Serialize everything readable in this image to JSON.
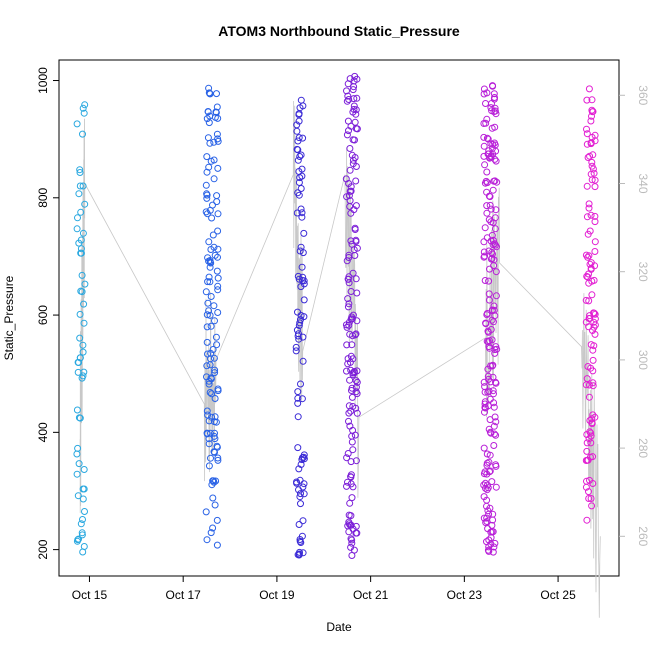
{
  "chart_data": {
    "type": "scatter",
    "title": "ATOM3 Northbound Static_Pressure",
    "xlabel": "Date",
    "ylabel": "Static_Pressure",
    "x_ticks": [
      "Oct 15",
      "Oct 17",
      "Oct 19",
      "Oct 21",
      "Oct 23",
      "Oct 25"
    ],
    "x_tick_days": [
      15,
      17,
      19,
      21,
      23,
      25
    ],
    "xlim": [
      14.35,
      26.3
    ],
    "y_ticks": [
      200,
      400,
      600,
      800,
      1000
    ],
    "ylim": [
      155,
      1035
    ],
    "y2_ticks": [
      260,
      280,
      300,
      320,
      340,
      360
    ],
    "y2lim": [
      251,
      368
    ],
    "grid": false,
    "legend": "none",
    "point_style": "open-circle",
    "line_color": "#c8c8c8",
    "clusters": [
      {
        "x_center": 14.82,
        "x_spread": 0.09,
        "n": 60,
        "color": "#29a8e0",
        "y_min": 178,
        "y_max": 965
      },
      {
        "x_center": 17.62,
        "x_spread": 0.13,
        "n": 130,
        "color": "#2962e6",
        "y_min": 178,
        "y_max": 1012
      },
      {
        "x_center": 19.5,
        "x_spread": 0.09,
        "n": 90,
        "color": "#3a2ad6",
        "y_min": 185,
        "y_max": 1000
      },
      {
        "x_center": 20.6,
        "x_spread": 0.12,
        "n": 150,
        "color": "#7c1fd8",
        "y_min": 190,
        "y_max": 1008
      },
      {
        "x_center": 23.55,
        "x_spread": 0.14,
        "n": 200,
        "color": "#b81fd8",
        "y_min": 195,
        "y_max": 992
      },
      {
        "x_center": 25.7,
        "x_spread": 0.1,
        "n": 110,
        "color": "#e21fd2",
        "y_min": 250,
        "y_max": 990
      }
    ],
    "line_series": {
      "axis": "right",
      "x": [
        14.8,
        14.9,
        17.45,
        17.7,
        19.35,
        19.55,
        20.45,
        20.75,
        23.45,
        23.75,
        25.5,
        25.9
      ],
      "y": [
        282,
        340,
        290,
        300,
        342,
        302,
        342,
        287,
        305,
        322,
        303,
        260
      ]
    }
  }
}
